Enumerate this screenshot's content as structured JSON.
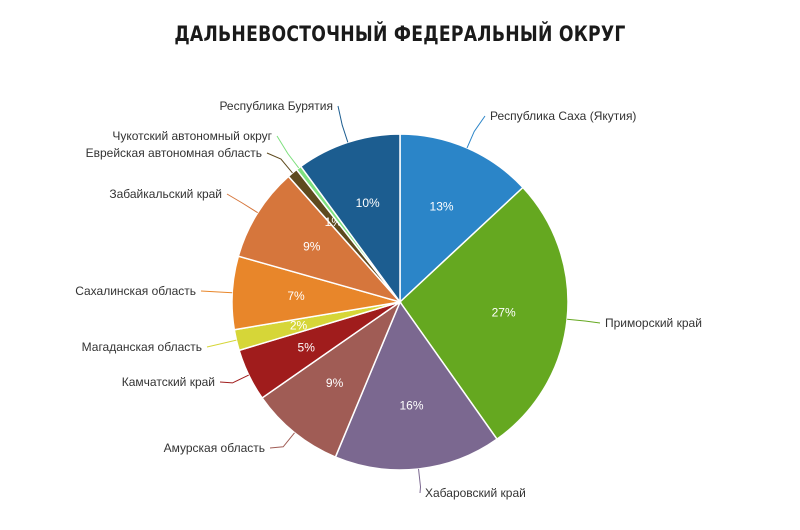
{
  "chart_data": {
    "type": "pie",
    "title": "ДАЛЬНЕВОСТОЧНЫЙ ФЕДЕРАЛЬНЫЙ ОКРУГ",
    "categories": [
      "Республика Саха (Якутия)",
      "Приморский край",
      "Хабаровский край",
      "Амурская область",
      "Камчатский край",
      "Магаданская область",
      "Сахалинская область",
      "Забайкальский край",
      "Еврейская автономная область",
      "Чукотский автономный округ",
      "Республика Бурятия"
    ],
    "values": [
      13,
      27,
      16,
      9,
      5,
      2,
      7,
      9,
      1,
      0.5,
      10
    ],
    "data_labels": [
      "13%",
      "27%",
      "16%",
      "9%",
      "5%",
      "2%",
      "7%",
      "9%",
      "1%",
      "",
      "10%"
    ],
    "colors": [
      "#2b85c8",
      "#65a820",
      "#7b6890",
      "#a05c55",
      "#a01c1c",
      "#d6d638",
      "#e8862a",
      "#d6763c",
      "#5e4a1e",
      "#7ee07e",
      "#1c5d90"
    ]
  }
}
